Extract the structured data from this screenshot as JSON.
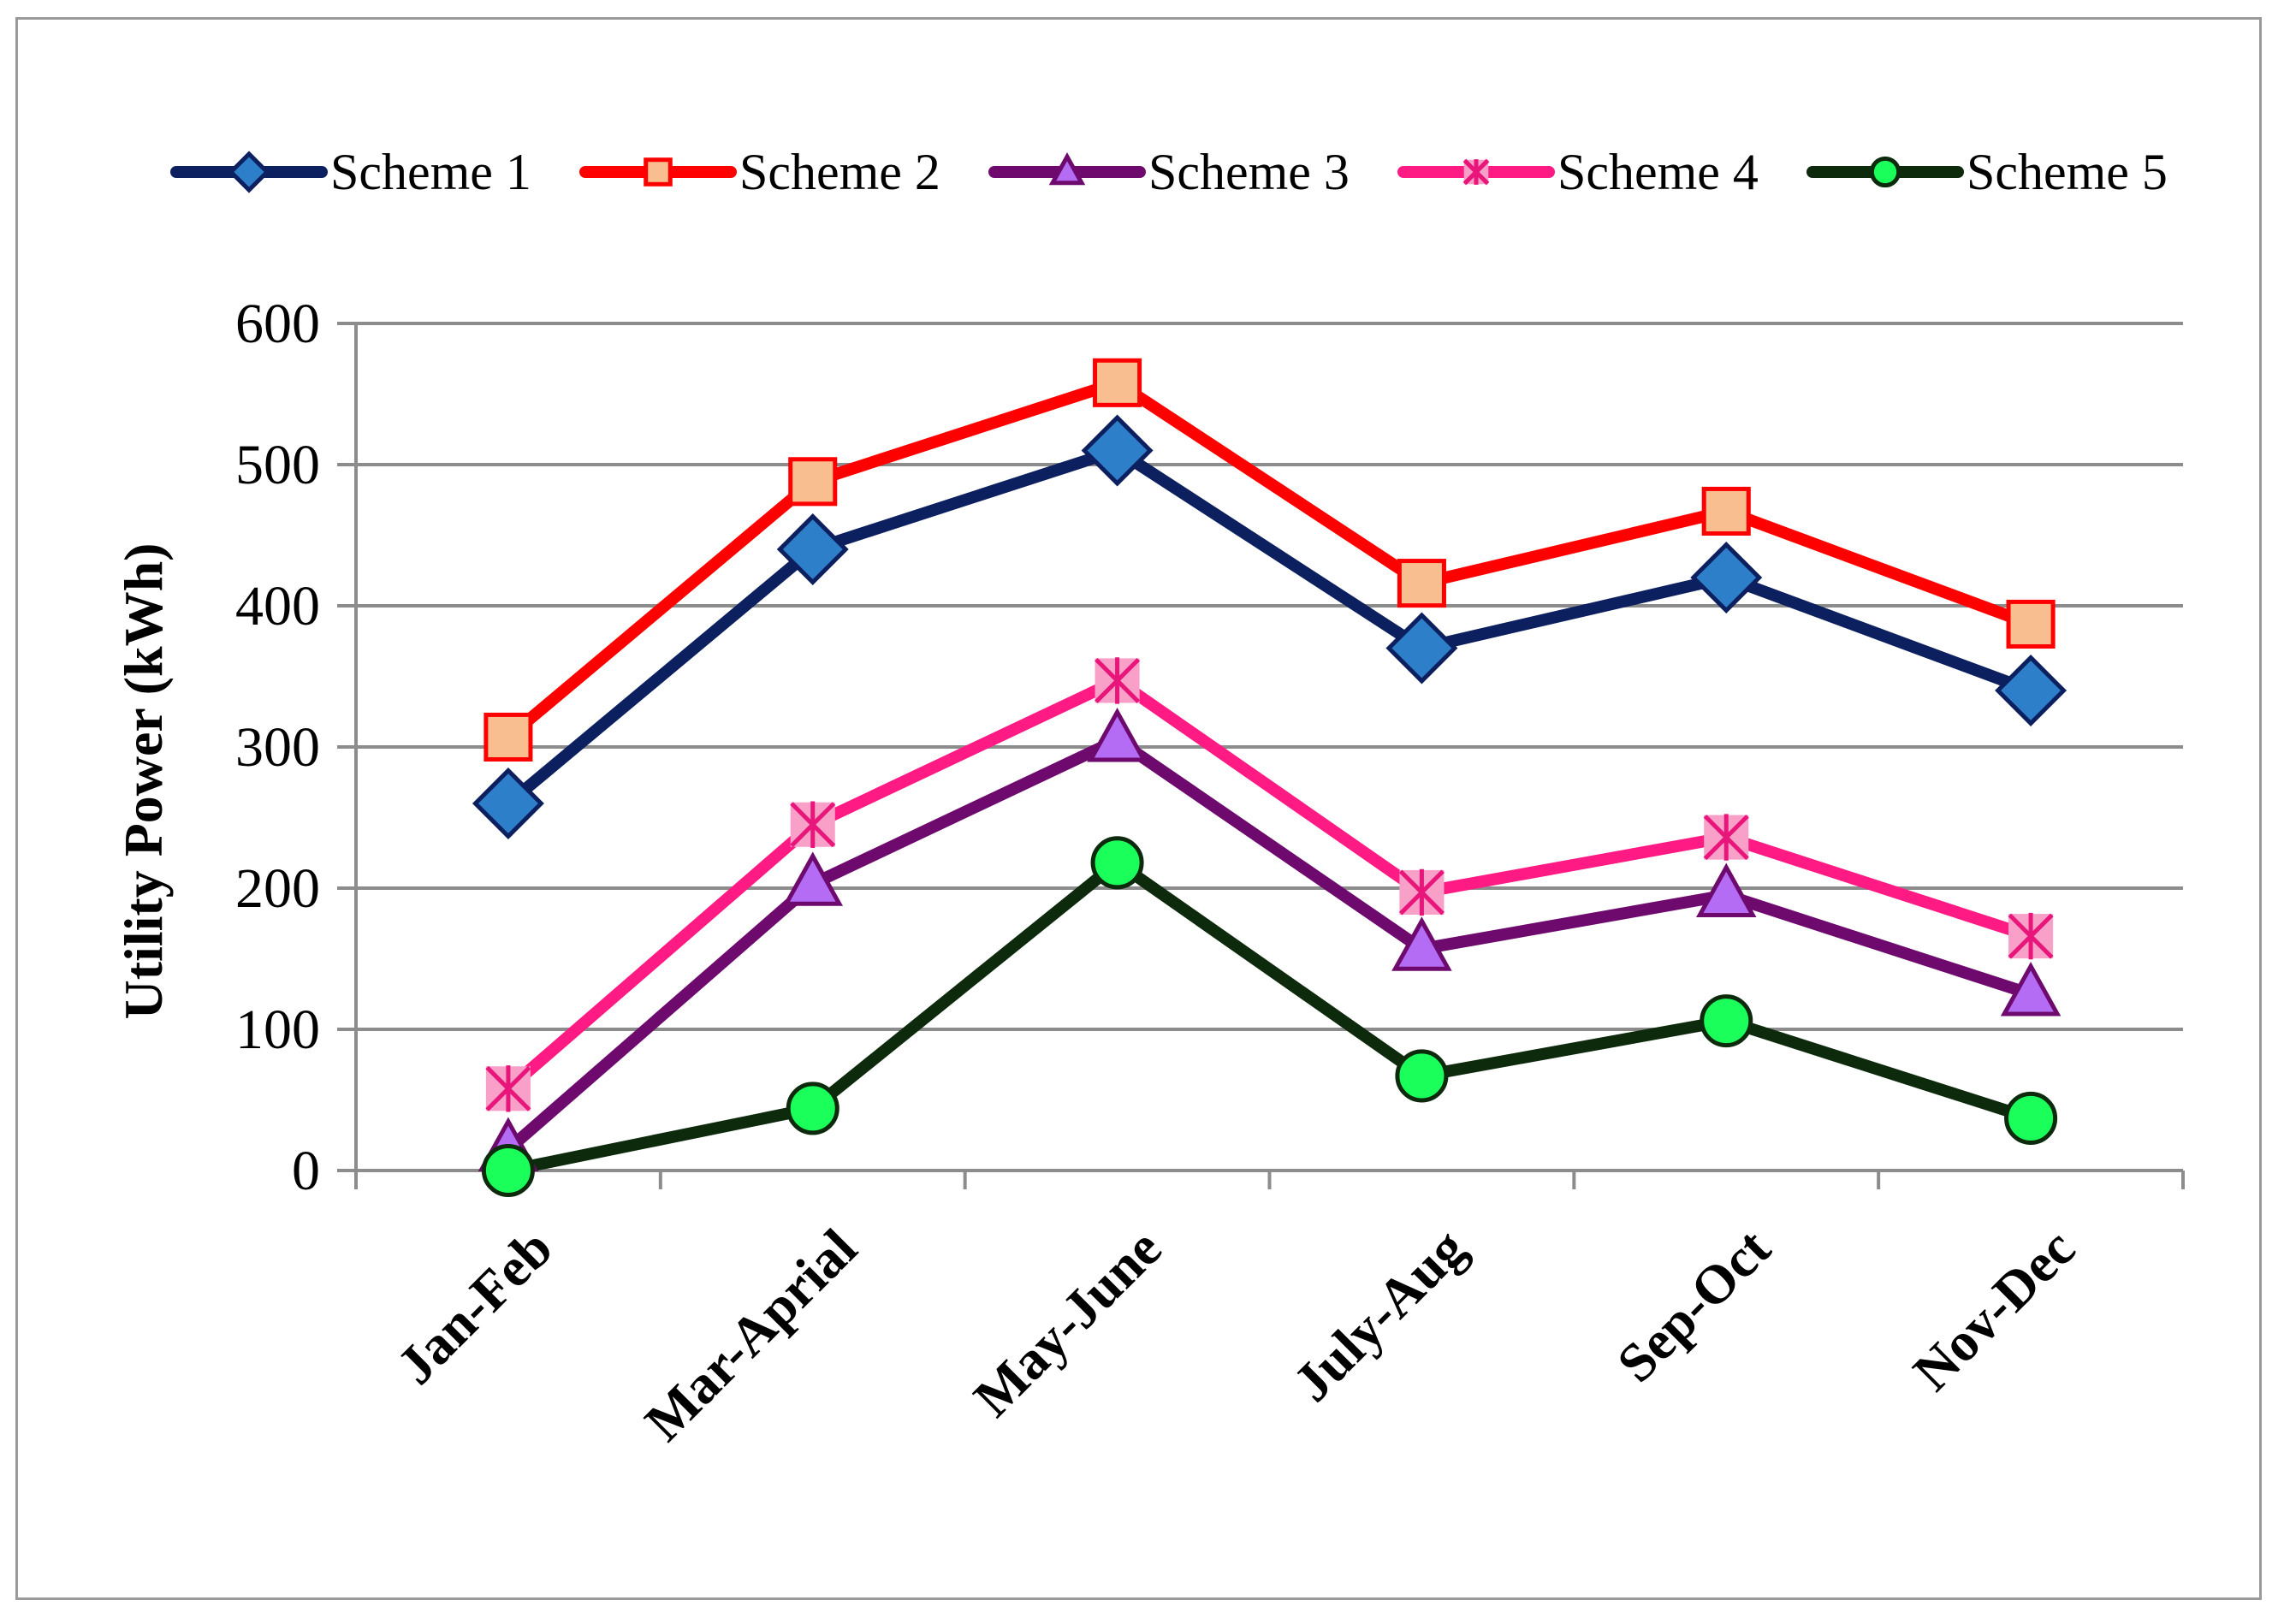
{
  "chart_data": {
    "type": "line",
    "title": "",
    "xlabel": "",
    "ylabel": "Utility Power  (kWh)",
    "ylim": [
      0,
      600
    ],
    "yticks": [
      0,
      100,
      200,
      300,
      400,
      500,
      600
    ],
    "grid": true,
    "legend_position": "top",
    "categories": [
      "Jan-Feb",
      "Mar-Aprial",
      "May-June",
      "July-Aug",
      "Sep-Oct",
      "Nov-Dec"
    ],
    "series": [
      {
        "name": "Scheme 1",
        "values": [
          260,
          440,
          510,
          370,
          420,
          340
        ],
        "line_color": "#0c1f5e",
        "marker": "diamond",
        "marker_fill": "#2e7fc9",
        "marker_stroke": "#0c1f5e"
      },
      {
        "name": "Scheme 2",
        "values": [
          307,
          488,
          558,
          416,
          467,
          387
        ],
        "line_color": "#ff0000",
        "marker": "square",
        "marker_fill": "#f9be8f",
        "marker_stroke": "#ff0000"
      },
      {
        "name": "Scheme 3",
        "values": [
          15,
          203,
          305,
          157,
          195,
          125
        ],
        "line_color": "#6e0a6e",
        "marker": "triangle",
        "marker_fill": "#b56cf5",
        "marker_stroke": "#6e0a6e"
      },
      {
        "name": "Scheme 4",
        "values": [
          58,
          245,
          347,
          197,
          236,
          166
        ],
        "line_color": "#ff1a84",
        "marker": "star",
        "marker_fill": "#f9a0c8",
        "marker_stroke": "#e8157a"
      },
      {
        "name": "Scheme 5",
        "values": [
          0,
          44,
          218,
          67,
          106,
          37
        ],
        "line_color": "#0d2a0d",
        "marker": "circle",
        "marker_fill": "#1aff5a",
        "marker_stroke": "#0d2a0d"
      }
    ]
  }
}
